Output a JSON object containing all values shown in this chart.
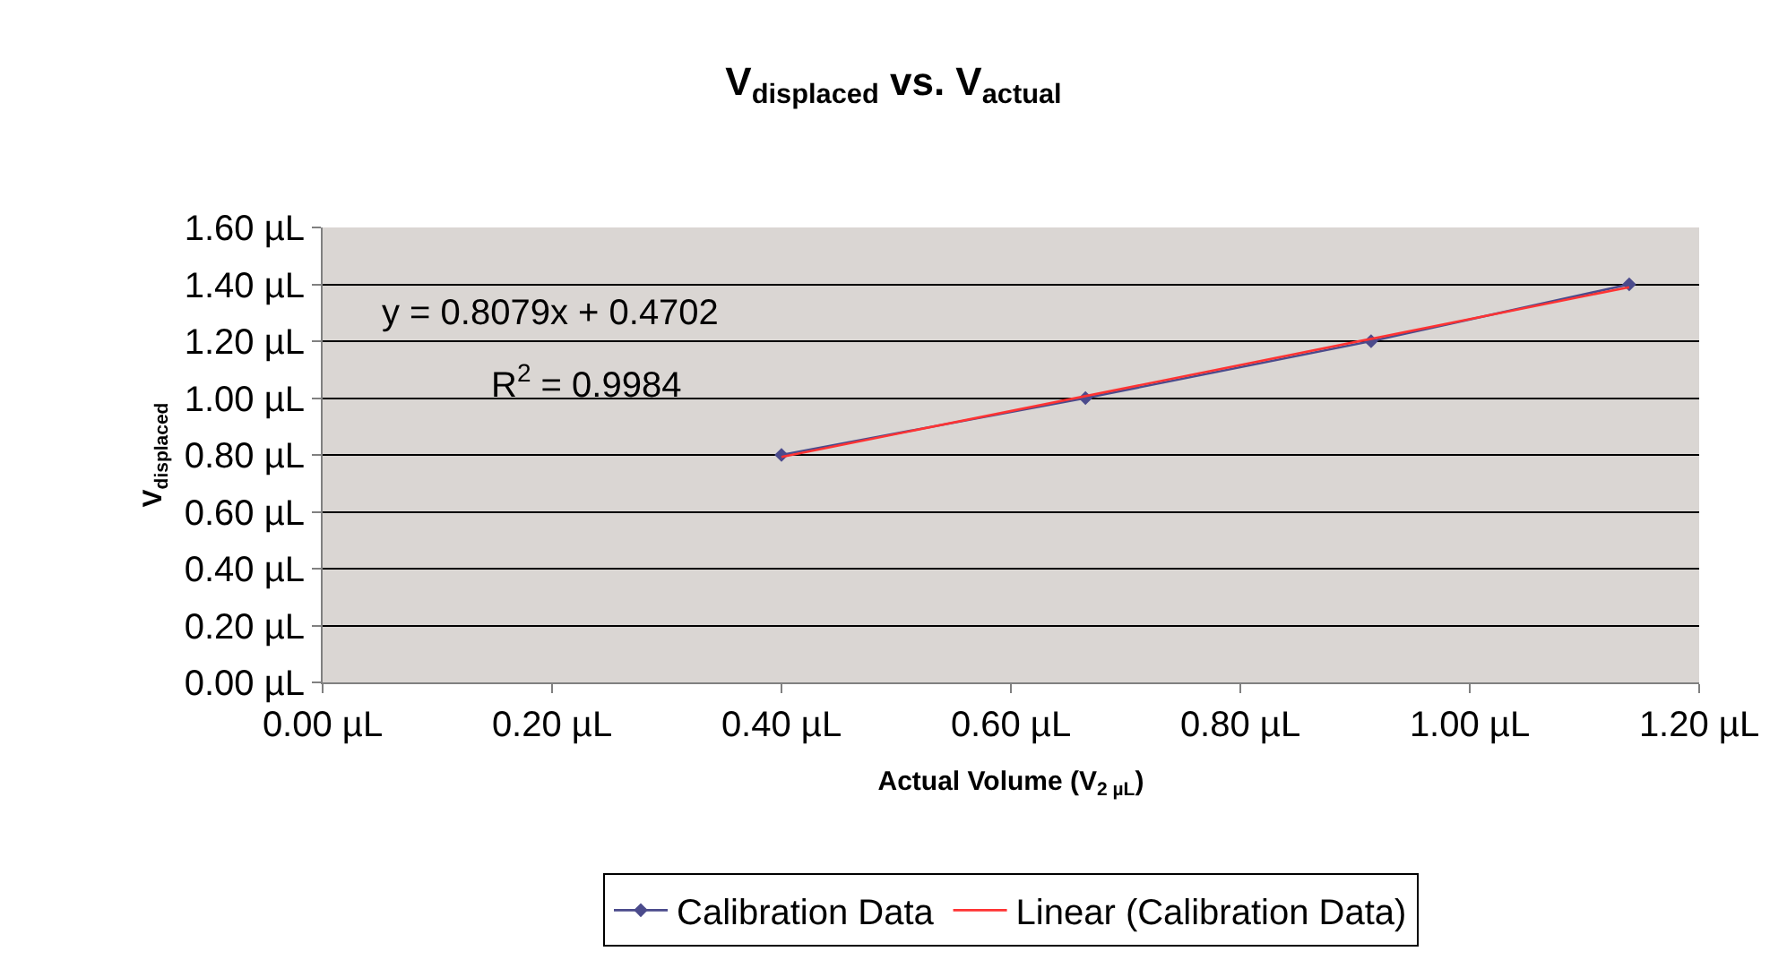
{
  "chart_data": {
    "type": "line",
    "title": "V$_{displaced}$ vs. V$_{actual}$",
    "xlabel": "Actual Volume (V$_{2 µL}$)",
    "ylabel": "V$_{displaced}$",
    "series": [
      {
        "name": "Calibration Data",
        "color": "#4b4b8c",
        "marker": "diamond",
        "x": [
          0.4,
          0.665,
          0.914,
          1.139
        ],
        "values": [
          0.8,
          1.0,
          1.2,
          1.4
        ]
      },
      {
        "name": "Linear (Calibration Data)",
        "color": "#ff3333",
        "marker": "none",
        "x": [
          0.4,
          1.139
        ],
        "values": [
          0.793,
          1.39
        ]
      }
    ],
    "xlim": [
      0,
      1.2
    ],
    "ylim": [
      0,
      1.6
    ],
    "xticks": [
      {
        "value": 0,
        "label": "0.00 µL"
      },
      {
        "value": 0.2,
        "label": "0.20 µL"
      },
      {
        "value": 0.4,
        "label": "0.40 µL"
      },
      {
        "value": 0.6,
        "label": "0.60 µL"
      },
      {
        "value": 0.8,
        "label": "0.80 µL"
      },
      {
        "value": 1.0,
        "label": "1.00 µL"
      },
      {
        "value": 1.2,
        "label": "1.20 µL"
      }
    ],
    "yticks": [
      {
        "value": 0,
        "label": "0.00 µL"
      },
      {
        "value": 0.2,
        "label": "0.20 µL"
      },
      {
        "value": 0.4,
        "label": "0.40 µL"
      },
      {
        "value": 0.6,
        "label": "0.60 µL"
      },
      {
        "value": 0.8,
        "label": "0.80 µL"
      },
      {
        "value": 1.0,
        "label": "1.00 µL"
      },
      {
        "value": 1.2,
        "label": "1.20 µL"
      },
      {
        "value": 1.4,
        "label": "1.40 µL"
      },
      {
        "value": 1.6,
        "label": "1.60 µL"
      }
    ],
    "grid": "y",
    "legend": "bottom",
    "annotations": [
      "y = 0.8079x + 0.4702",
      "R$^{2}$ = 0.9984"
    ]
  }
}
